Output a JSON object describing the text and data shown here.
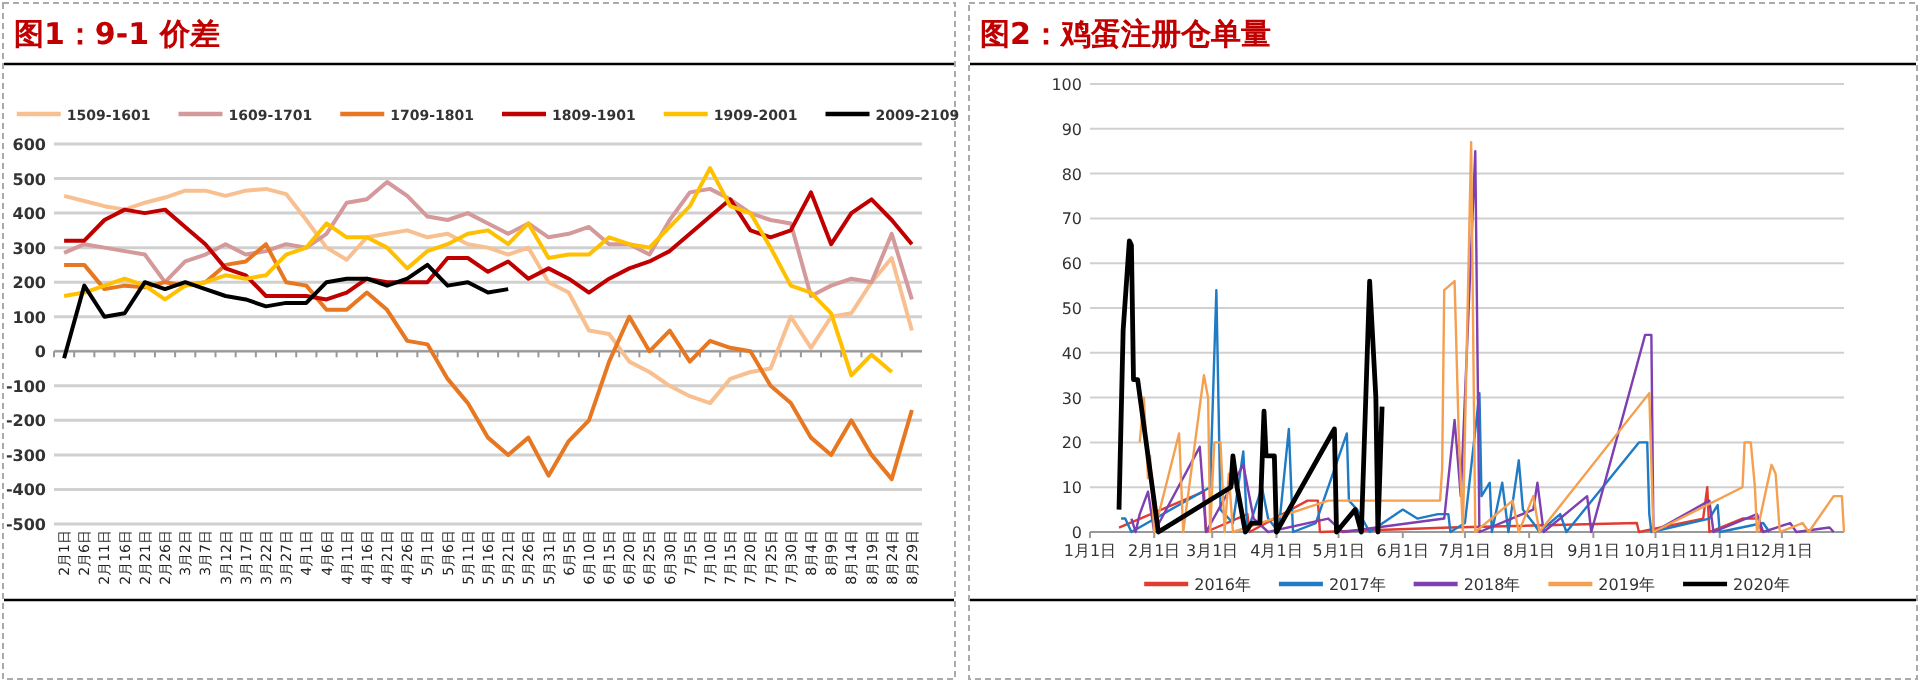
{
  "chart_data": [
    {
      "type": "line",
      "title": "图1：9-1 价差",
      "legend": "top",
      "grid": "y",
      "categories": [
        "2月1日",
        "2月6日",
        "2月11日",
        "2月16日",
        "2月21日",
        "2月26日",
        "3月2日",
        "3月7日",
        "3月12日",
        "3月17日",
        "3月22日",
        "3月27日",
        "4月1日",
        "4月6日",
        "4月11日",
        "4月16日",
        "4月21日",
        "4月26日",
        "5月1日",
        "5月6日",
        "5月11日",
        "5月16日",
        "5月21日",
        "5月26日",
        "5月31日",
        "6月5日",
        "6月10日",
        "6月15日",
        "6月20日",
        "6月25日",
        "6月30日",
        "7月5日",
        "7月10日",
        "7月15日",
        "7月20日",
        "7月25日",
        "7月30日",
        "8月4日",
        "8月9日",
        "8月14日",
        "8月19日",
        "8月24日",
        "8月29日"
      ],
      "ylim": [
        -500,
        600
      ],
      "yticks": [
        -500,
        -400,
        -300,
        -200,
        -100,
        0,
        100,
        200,
        300,
        400,
        500,
        600
      ],
      "series": [
        {
          "name": "1509-1601",
          "color": "#f8c090",
          "values": [
            450,
            435,
            420,
            410,
            430,
            445,
            465,
            465,
            450,
            465,
            470,
            455,
            380,
            300,
            265,
            330,
            340,
            350,
            330,
            340,
            310,
            300,
            280,
            300,
            200,
            170,
            60,
            50,
            -30,
            -60,
            -100,
            -130,
            -150,
            -80,
            -60,
            -50,
            100,
            10,
            100,
            110,
            200,
            270,
            60
          ]
        },
        {
          "name": "1609-1701",
          "color": "#d4999a",
          "values": [
            285,
            310,
            300,
            290,
            280,
            200,
            260,
            280,
            310,
            280,
            290,
            310,
            300,
            340,
            430,
            440,
            490,
            450,
            390,
            380,
            400,
            370,
            340,
            370,
            330,
            340,
            360,
            310,
            310,
            280,
            380,
            460,
            470,
            440,
            400,
            380,
            370,
            160,
            190,
            210,
            200,
            340,
            150
          ]
        },
        {
          "name": "1709-1801",
          "color": "#e87722",
          "values": [
            250,
            250,
            180,
            190,
            185,
            200,
            190,
            200,
            250,
            260,
            310,
            200,
            190,
            120,
            120,
            170,
            120,
            30,
            20,
            -80,
            -150,
            -250,
            -300,
            -250,
            -360,
            -260,
            -200,
            -30,
            100,
            0,
            60,
            -30,
            30,
            10,
            0,
            -100,
            -150,
            -250,
            -300,
            -200,
            -300,
            -370,
            -170
          ]
        },
        {
          "name": "1809-1901",
          "color": "#c00000",
          "values": [
            320,
            320,
            380,
            410,
            400,
            410,
            360,
            310,
            240,
            220,
            160,
            160,
            160,
            150,
            170,
            210,
            200,
            200,
            200,
            270,
            270,
            230,
            260,
            210,
            240,
            210,
            170,
            210,
            240,
            260,
            290,
            340,
            390,
            440,
            350,
            330,
            350,
            460,
            310,
            400,
            440,
            380,
            310
          ]
        },
        {
          "name": "1909-2001",
          "color": "#ffc000",
          "values": [
            160,
            170,
            190,
            210,
            190,
            150,
            190,
            200,
            220,
            210,
            220,
            280,
            300,
            370,
            330,
            330,
            300,
            240,
            290,
            310,
            340,
            350,
            310,
            370,
            270,
            280,
            280,
            330,
            310,
            300,
            360,
            420,
            530,
            420,
            400,
            300,
            190,
            170,
            110,
            -70,
            -10,
            -60,
            null
          ]
        },
        {
          "name": "2009-2109",
          "color": "#000000",
          "values": [
            -20,
            190,
            100,
            110,
            200,
            180,
            200,
            180,
            160,
            150,
            130,
            140,
            140,
            200,
            210,
            210,
            190,
            210,
            250,
            190,
            200,
            170,
            180,
            null,
            null,
            null,
            null,
            null,
            null,
            null,
            null,
            null,
            null,
            null,
            null,
            null,
            null,
            null,
            null,
            null,
            null,
            null,
            null
          ]
        }
      ]
    },
    {
      "type": "line",
      "title": "图2：鸡蛋注册仓单量",
      "legend": "bottom",
      "grid": "y",
      "xlim": [
        "--01-01",
        "--12-31"
      ],
      "xticks": [
        {
          "value": "--01-01",
          "label": "1月1日"
        },
        {
          "value": "--02-01",
          "label": "2月1日"
        },
        {
          "value": "--03-01",
          "label": "3月1日"
        },
        {
          "value": "--04-01",
          "label": "4月1日"
        },
        {
          "value": "--05-01",
          "label": "5月1日"
        },
        {
          "value": "--06-01",
          "label": "6月1日"
        },
        {
          "value": "--07-01",
          "label": "7月1日"
        },
        {
          "value": "--08-01",
          "label": "8月1日"
        },
        {
          "value": "--09-01",
          "label": "9月1日"
        },
        {
          "value": "--10-01",
          "label": "10月1日"
        },
        {
          "value": "--11-01",
          "label": "11月1日"
        },
        {
          "value": "--12-01",
          "label": "12月1日"
        }
      ],
      "ylim": [
        0,
        100
      ],
      "yticks": [
        0,
        10,
        20,
        30,
        40,
        50,
        60,
        70,
        80,
        90,
        100
      ],
      "series": [
        {
          "name": "2016年",
          "color": "#e03c31",
          "x": [
            "--01-15",
            "--02-25",
            "--02-26",
            "--03-18",
            "--03-19",
            "--04-16",
            "--04-21",
            "--04-22",
            "--06-24",
            "--09-22",
            "--09-23",
            "--10-24",
            "--10-26",
            "--10-27",
            "--11-12",
            "--11-20",
            "--11-21"
          ],
          "values": [
            1,
            9,
            0,
            4,
            0,
            7,
            7,
            0,
            1,
            2,
            0,
            3,
            10,
            0,
            3,
            3,
            0
          ]
        },
        {
          "name": "2017年",
          "color": "#1f7bc4",
          "x": [
            "--01-16",
            "--01-18",
            "--01-21",
            "--02-28",
            "--03-03",
            "--03-05",
            "--03-11",
            "--03-16",
            "--03-18",
            "--03-25",
            "--03-28",
            "--04-02",
            "--04-07",
            "--04-09",
            "--04-20",
            "--05-05",
            "--05-06",
            "--05-10",
            "--05-16",
            "--06-01",
            "--06-08",
            "--06-18",
            "--06-23",
            "--06-24",
            "--07-01",
            "--07-08",
            "--07-09",
            "--07-13",
            "--07-14",
            "--07-19",
            "--07-22",
            "--07-27",
            "--07-29",
            "--08-03",
            "--08-06",
            "--08-16",
            "--08-19",
            "--09-23",
            "--09-27",
            "--09-28",
            "--09-29",
            "--10-27",
            "--10-31",
            "--11-01",
            "--11-22",
            "--11-25"
          ],
          "values": [
            3,
            3,
            0,
            10,
            54,
            5,
            2,
            18,
            0,
            10,
            3,
            0,
            23,
            0,
            2,
            22,
            7,
            5,
            0,
            5,
            3,
            4,
            4,
            0,
            2,
            31,
            8,
            11,
            0,
            11,
            0,
            16,
            5,
            2,
            0,
            4,
            0,
            20,
            20,
            4,
            0,
            3,
            6,
            0,
            2,
            0
          ]
        },
        {
          "name": "2018年",
          "color": "#7e3fb0",
          "x": [
            "--01-21",
            "--01-23",
            "--01-25",
            "--01-29",
            "--02-01",
            "--02-23",
            "--02-26",
            "--03-16",
            "--03-21",
            "--03-28",
            "--04-26",
            "--05-03",
            "--06-21",
            "--06-26",
            "--06-29",
            "--07-06",
            "--07-08",
            "--08-03",
            "--08-05",
            "--08-08",
            "--08-29",
            "--08-31",
            "--09-26",
            "--09-29",
            "--09-30",
            "--10-27",
            "--10-29",
            "--11-19",
            "--11-22",
            "--12-05",
            "--12-08",
            "--12-24",
            "--12-26"
          ],
          "values": [
            3,
            0,
            4,
            9,
            0,
            19,
            0,
            15,
            3,
            0,
            3,
            0,
            3,
            25,
            8,
            85,
            0,
            5,
            11,
            0,
            8,
            0,
            44,
            44,
            0,
            7,
            0,
            4,
            0,
            2,
            0,
            1,
            0
          ]
        },
        {
          "name": "2019年",
          "color": "#f5a050",
          "x": [
            "--01-25",
            "--01-27",
            "--01-29",
            "--01-30",
            "--02-01",
            "--02-13",
            "--02-15",
            "--02-25",
            "--02-27",
            "--02-28",
            "--03-02",
            "--03-05",
            "--03-07",
            "--03-09",
            "--03-11",
            "--04-26",
            "--06-19",
            "--06-20",
            "--06-21",
            "--06-26",
            "--06-28",
            "--06-30",
            "--07-04",
            "--07-06",
            "--07-24",
            "--07-27",
            "--08-03",
            "--08-06",
            "--09-28",
            "--09-30",
            "--11-12",
            "--11-13",
            "--11-16",
            "--11-18",
            "--11-19",
            "--11-26",
            "--11-28",
            "--11-30",
            "--12-11",
            "--12-14",
            "--12-26",
            "--12-30",
            "--12-31"
          ],
          "values": [
            20,
            30,
            12,
            17,
            0,
            22,
            0,
            35,
            30,
            0,
            20,
            20,
            0,
            13,
            0,
            7,
            7,
            14,
            54,
            56,
            22,
            0,
            87,
            0,
            7,
            0,
            8,
            0,
            31,
            0,
            10,
            20,
            20,
            10,
            0,
            15,
            13,
            0,
            2,
            0,
            8,
            8,
            0
          ]
        },
        {
          "name": "2020年",
          "color": "#000000",
          "x": [
            "--01-15",
            "--01-17",
            "--01-20",
            "--01-21",
            "--01-22",
            "--01-24",
            "--02-03",
            "--03-10",
            "--03-11",
            "--03-13",
            "--03-17",
            "--03-20",
            "--03-24",
            "--03-26",
            "--03-27",
            "--03-31",
            "--04-01",
            "--04-29",
            "--04-30",
            "--05-09",
            "--05-12",
            "--05-16",
            "--05-19",
            "--05-20",
            "--05-22"
          ],
          "values": [
            5,
            45,
            65,
            64,
            34,
            34,
            0,
            10,
            17,
            10,
            0,
            2,
            2,
            27,
            17,
            17,
            0,
            23,
            0,
            5,
            0,
            56,
            30,
            0,
            28
          ]
        }
      ]
    }
  ]
}
